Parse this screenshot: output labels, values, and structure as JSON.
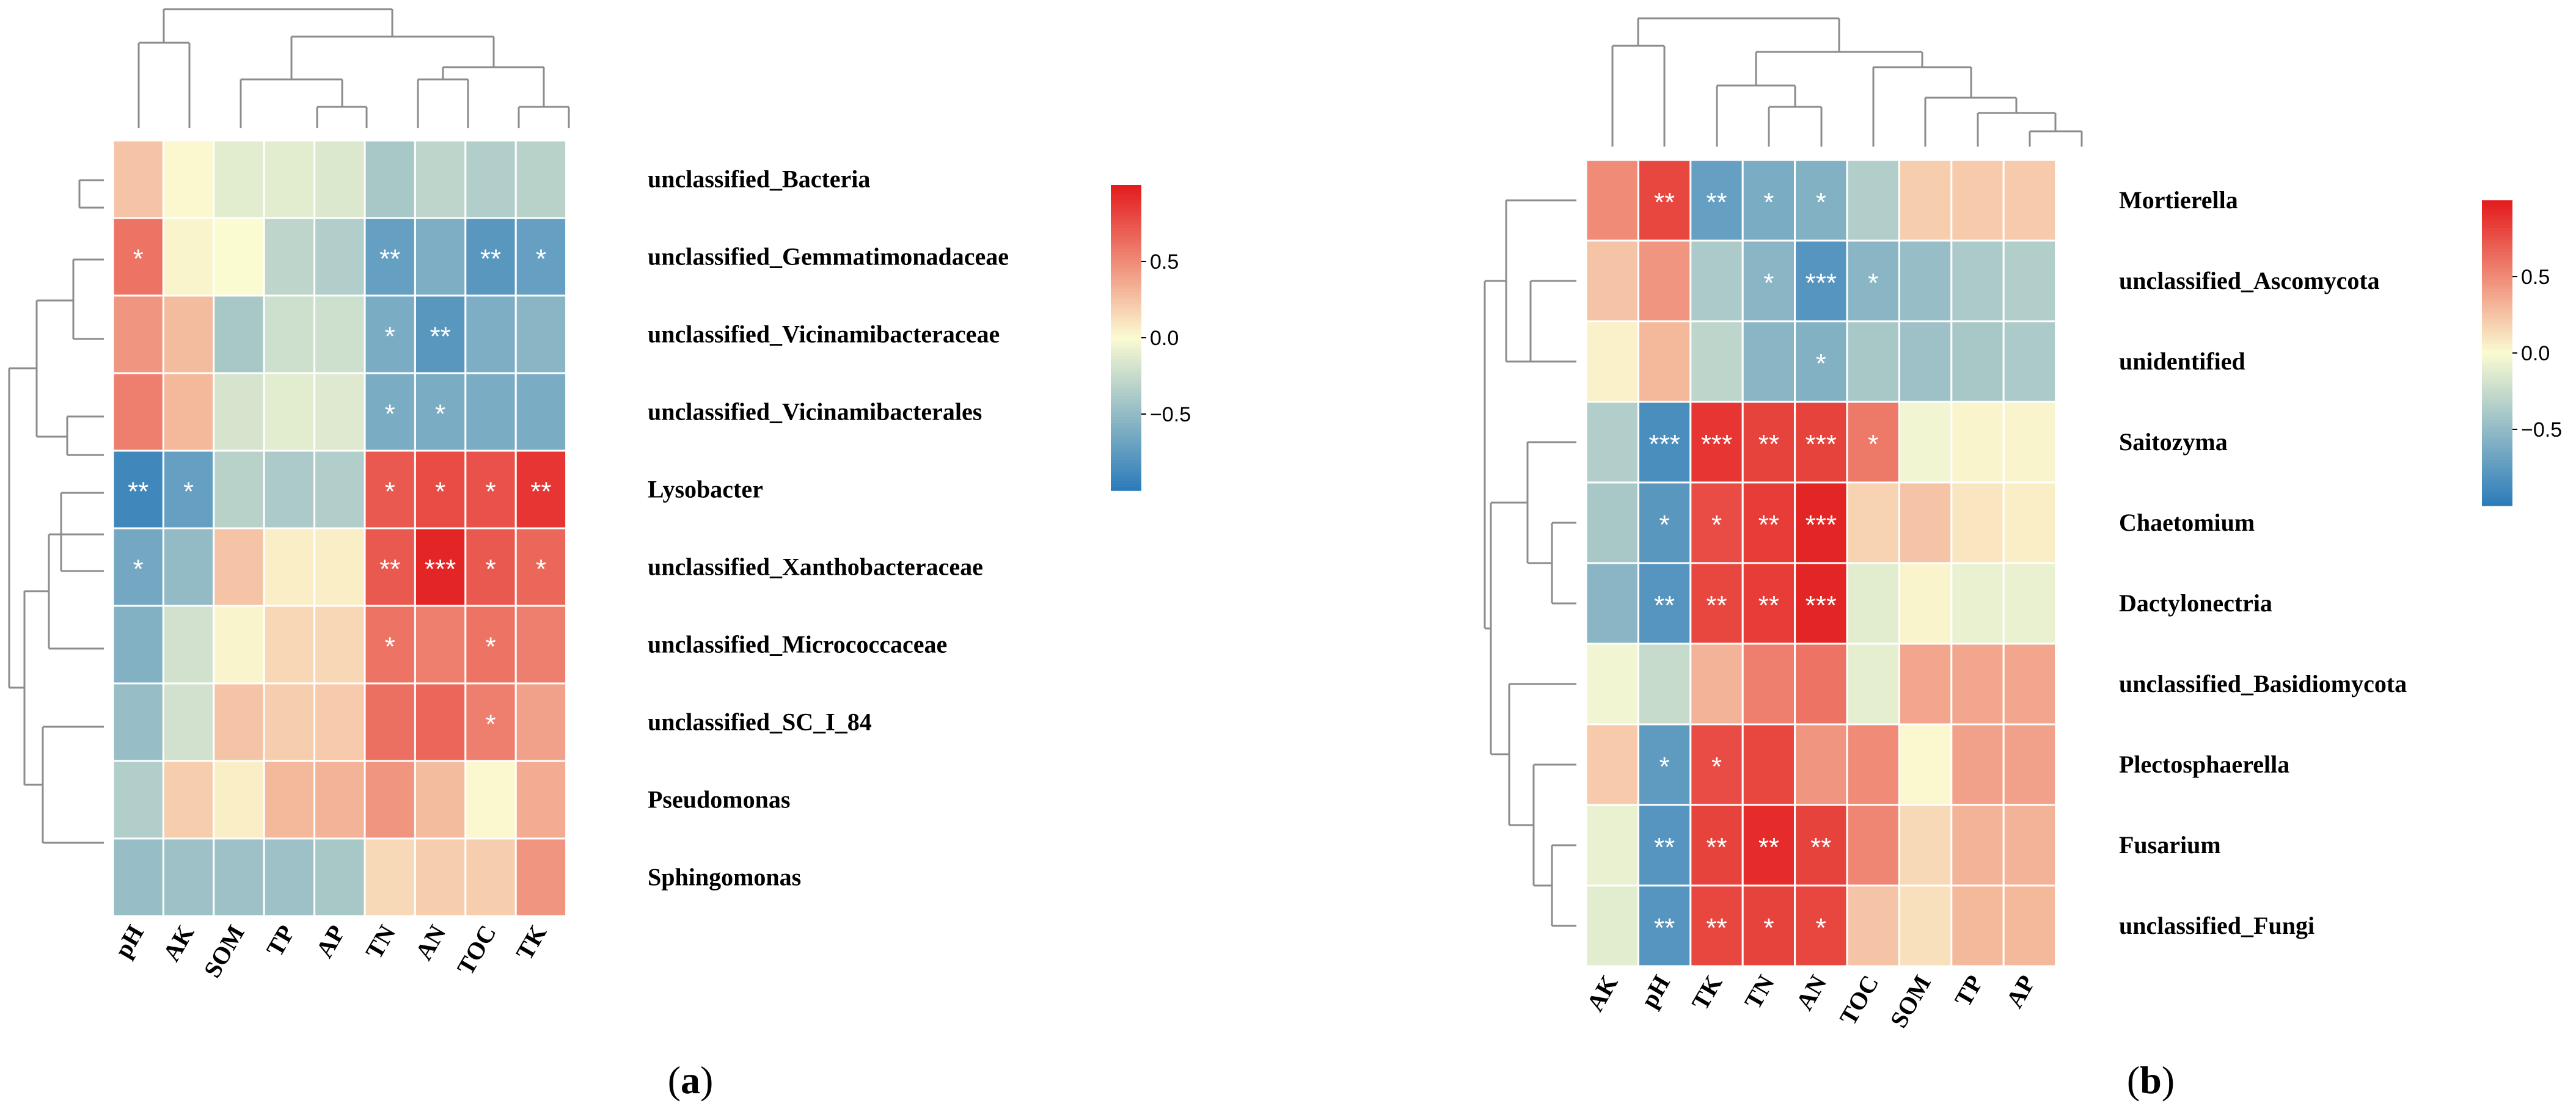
{
  "chart_data": [
    {
      "type": "heatmap",
      "panel_label_open": "(",
      "panel_label_letter": "a",
      "panel_label_close": ")",
      "columns": [
        "pH",
        "AK",
        "SOM",
        "TP",
        "AP",
        "TN",
        "AN",
        "TOC",
        "TK"
      ],
      "rows": [
        "unclassified_Bacteria",
        "unclassified_Gemmatimonadaceae",
        "unclassified_Vicinamibacteraceae",
        "unclassified_Vicinamibacterales",
        "Lysobacter",
        "unclassified_Xanthobacteraceae",
        "unclassified_Micrococcaceae",
        "unclassified_SC_I_84",
        "Pseudomonas",
        "Sphingomonas"
      ],
      "values": [
        [
          0.25,
          0.02,
          -0.12,
          -0.12,
          -0.15,
          -0.4,
          -0.3,
          -0.35,
          -0.32
        ],
        [
          0.6,
          0.03,
          0.0,
          -0.3,
          -0.35,
          -0.72,
          -0.6,
          -0.78,
          -0.72
        ],
        [
          0.45,
          0.28,
          -0.4,
          -0.22,
          -0.22,
          -0.62,
          -0.78,
          -0.6,
          -0.55
        ],
        [
          0.55,
          0.3,
          -0.18,
          -0.12,
          -0.14,
          -0.62,
          -0.62,
          -0.62,
          -0.62
        ],
        [
          -0.9,
          -0.72,
          -0.32,
          -0.38,
          -0.35,
          0.72,
          0.78,
          0.75,
          0.88
        ],
        [
          -0.65,
          -0.5,
          0.25,
          0.06,
          0.06,
          0.72,
          0.95,
          0.72,
          0.66
        ],
        [
          -0.58,
          -0.2,
          0.03,
          0.16,
          0.16,
          0.6,
          0.55,
          0.6,
          0.55
        ],
        [
          -0.48,
          -0.2,
          0.25,
          0.2,
          0.22,
          0.62,
          0.66,
          0.55,
          0.4
        ],
        [
          -0.35,
          0.2,
          0.06,
          0.3,
          0.32,
          0.45,
          0.28,
          0.02,
          0.35
        ],
        [
          -0.48,
          -0.45,
          -0.45,
          -0.45,
          -0.4,
          0.15,
          0.2,
          0.2,
          0.45
        ]
      ],
      "significance": [
        [
          "",
          "",
          "",
          "",
          "",
          "",
          "",
          "",
          ""
        ],
        [
          "*",
          "",
          "",
          "",
          "",
          "**",
          "",
          "**",
          "*"
        ],
        [
          "",
          "",
          "",
          "",
          "",
          "*",
          "**",
          "",
          ""
        ],
        [
          "",
          "",
          "",
          "",
          "",
          "*",
          "*",
          "",
          ""
        ],
        [
          "**",
          "*",
          "",
          "",
          "",
          "*",
          "*",
          "*",
          "**"
        ],
        [
          "*",
          "",
          "",
          "",
          "",
          "**",
          "***",
          "*",
          "*"
        ],
        [
          "",
          "",
          "",
          "",
          "",
          "*",
          "",
          "*",
          ""
        ],
        [
          "",
          "",
          "",
          "",
          "",
          "",
          "",
          "*",
          ""
        ],
        [
          "",
          "",
          "",
          "",
          "",
          "",
          "",
          "",
          ""
        ],
        [
          "",
          "",
          "",
          "",
          "",
          "",
          "",
          "",
          ""
        ]
      ],
      "colorbar": {
        "ticks": [
          0.5,
          0.0,
          -0.5
        ],
        "tick_labels": [
          "0.5",
          "0.0",
          "−0.5"
        ],
        "range": [
          -1,
          1
        ]
      }
    },
    {
      "type": "heatmap",
      "panel_label_open": "(",
      "panel_label_letter": "b",
      "panel_label_close": ")",
      "columns": [
        "AK",
        "pH",
        "TK",
        "TN",
        "AN",
        "TOC",
        "SOM",
        "TP",
        "AP"
      ],
      "rows": [
        "Mortierella",
        "unclassified_Ascomycota",
        "unidentified",
        "Saitozyma",
        "Chaetomium",
        "Dactylonectria",
        "unclassified_Basidiomycota",
        "Plectosphaerella",
        "Fusarium",
        "unclassified_Fungi"
      ],
      "values": [
        [
          0.5,
          0.8,
          -0.72,
          -0.62,
          -0.58,
          -0.35,
          0.2,
          0.22,
          0.22
        ],
        [
          0.25,
          0.45,
          -0.38,
          -0.55,
          -0.8,
          -0.55,
          -0.48,
          -0.38,
          -0.35
        ],
        [
          0.05,
          0.3,
          -0.3,
          -0.55,
          -0.58,
          -0.4,
          -0.45,
          -0.4,
          -0.38
        ],
        [
          -0.35,
          -0.85,
          0.88,
          0.82,
          0.82,
          0.58,
          -0.05,
          0.03,
          0.03
        ],
        [
          -0.4,
          -0.78,
          0.78,
          0.85,
          0.95,
          0.18,
          0.25,
          0.1,
          0.06
        ],
        [
          -0.55,
          -0.8,
          0.8,
          0.85,
          0.95,
          -0.12,
          0.03,
          -0.08,
          -0.08
        ],
        [
          -0.05,
          -0.25,
          0.32,
          0.55,
          0.6,
          -0.1,
          0.38,
          0.38,
          0.38
        ],
        [
          0.22,
          -0.75,
          0.78,
          0.8,
          0.45,
          0.5,
          0.02,
          0.4,
          0.4
        ],
        [
          -0.08,
          -0.8,
          0.82,
          0.92,
          0.82,
          0.52,
          0.15,
          0.32,
          0.32
        ],
        [
          -0.12,
          -0.8,
          0.8,
          0.82,
          0.8,
          0.25,
          0.12,
          0.3,
          0.3
        ]
      ],
      "significance": [
        [
          "",
          "**",
          "**",
          "*",
          "*",
          "",
          "",
          "",
          ""
        ],
        [
          "",
          "",
          "",
          "*",
          "***",
          "*",
          "",
          "",
          ""
        ],
        [
          "",
          "",
          "",
          "",
          "*",
          "",
          "",
          "",
          ""
        ],
        [
          "",
          "***",
          "***",
          "**",
          "***",
          "*",
          "",
          "",
          ""
        ],
        [
          "",
          "*",
          "*",
          "**",
          "***",
          "",
          "",
          "",
          ""
        ],
        [
          "",
          "**",
          "**",
          "**",
          "***",
          "",
          "",
          "",
          ""
        ],
        [
          "",
          "",
          "",
          "",
          "",
          "",
          "",
          "",
          ""
        ],
        [
          "",
          "*",
          "*",
          "",
          "",
          "",
          "",
          "",
          ""
        ],
        [
          "",
          "**",
          "**",
          "**",
          "**",
          "",
          "",
          "",
          ""
        ],
        [
          "",
          "**",
          "**",
          "*",
          "*",
          "",
          "",
          "",
          ""
        ]
      ],
      "colorbar": {
        "ticks": [
          0.5,
          0.0,
          -0.5
        ],
        "tick_labels": [
          "0.5",
          "0.0",
          "−0.5"
        ],
        "range": [
          -1,
          1
        ]
      }
    }
  ],
  "colors": {
    "negative": "#2b7bba",
    "neutral": "#fbfbd2",
    "positive": "#e31a1c",
    "dendrogram": "#8c8c8c"
  }
}
